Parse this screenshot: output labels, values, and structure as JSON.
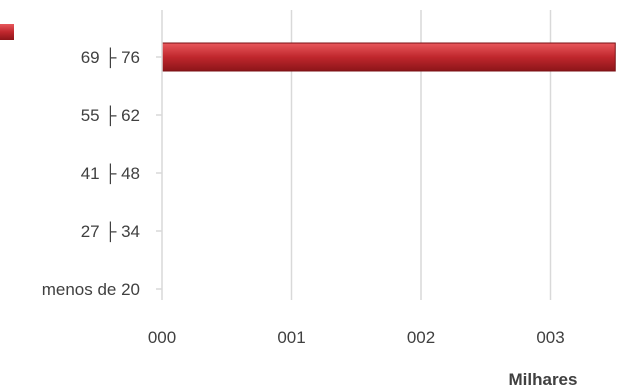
{
  "chart_data": {
    "type": "bar",
    "orientation": "horizontal",
    "title": "",
    "xlabel": "Milhares",
    "ylabel": "",
    "x_tick_labels": [
      "000",
      "001",
      "002",
      "003"
    ],
    "xlim": [
      0,
      3.5
    ],
    "categories": [
      "menos de 20",
      "27 ├ 34",
      "41 ├ 48",
      "55 ├ 62",
      "69 ├ 76"
    ],
    "values": [
      null,
      null,
      null,
      null,
      3.5
    ],
    "grid": true,
    "legend": "none",
    "colors": {
      "bar": "#c0272d",
      "bar_highlight": "#e8585c",
      "grid": "#d9d9d9",
      "text": "#404040"
    }
  }
}
